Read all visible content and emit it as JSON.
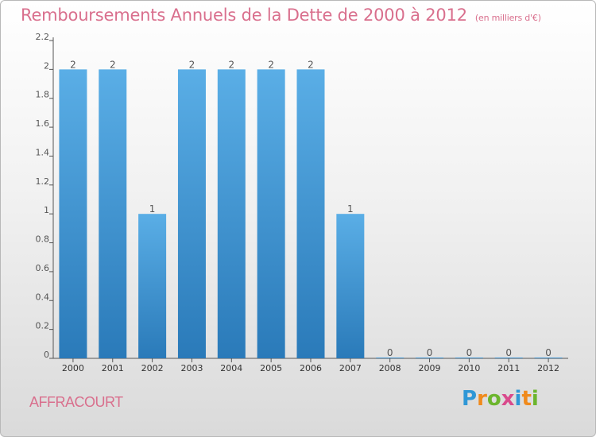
{
  "title": "Remboursements Annuels de la Dette de 2000 à 2012",
  "unit": "(en milliers d'€)",
  "commune": "AFFRACOURT",
  "brand": {
    "text": "Proxiti",
    "letters": [
      "P",
      "r",
      "o",
      "x",
      "i",
      "t",
      "i"
    ],
    "colors": [
      "#2f97d6",
      "#f08a1c",
      "#6cb52d",
      "#d94a8c",
      "#2f97d6",
      "#f08a1c",
      "#6cb52d"
    ]
  },
  "colors": {
    "bar_light": "#5aaee6",
    "bar_dark": "#2a7ab9",
    "text": "#d96f8d"
  },
  "chart_data": {
    "type": "bar",
    "title": "Remboursements Annuels de la Dette de 2000 à 2012",
    "categories": [
      "2000",
      "2001",
      "2002",
      "2003",
      "2004",
      "2005",
      "2006",
      "2007",
      "2008",
      "2009",
      "2010",
      "2011",
      "2012"
    ],
    "values": [
      2,
      2,
      1,
      2,
      2,
      2,
      2,
      1,
      0,
      0,
      0,
      0,
      0
    ],
    "data_labels": [
      "2",
      "2",
      "1",
      "2",
      "2",
      "2",
      "2",
      "1",
      "0",
      "0",
      "0",
      "0",
      "0"
    ],
    "ylim": [
      0,
      2.2
    ],
    "yticks": [
      0,
      0.2,
      0.4,
      0.6,
      0.8,
      1,
      1.2,
      1.4,
      1.6,
      1.8,
      2,
      2.2
    ],
    "ytick_labels": [
      "0",
      "0.2",
      "0.4",
      "0.6",
      "0.8",
      "1",
      "1.2",
      "1.4",
      "1.6",
      "1.8",
      "2",
      "2.2"
    ],
    "grid": false,
    "legend": "none"
  }
}
